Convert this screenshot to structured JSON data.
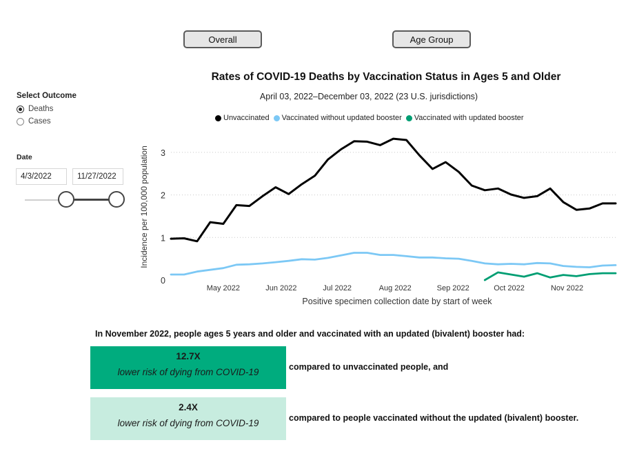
{
  "tabs": [
    {
      "label": "Overall"
    },
    {
      "label": "Age Group"
    }
  ],
  "filters": {
    "outcome_label": "Select Outcome",
    "outcome_options": [
      "Deaths",
      "Cases"
    ],
    "outcome_selected": "Deaths",
    "date_label": "Date",
    "date_start": "4/3/2022",
    "date_end": "11/27/2022",
    "slider_start_fraction": 0.0,
    "slider_end_fraction": 1.0
  },
  "chart_data": {
    "type": "line",
    "title": "Rates of COVID-19 Deaths by Vaccination Status in Ages 5 and Older",
    "subtitle": "April 03, 2022–December 03, 2022 (23 U.S. jurisdictions)",
    "xlabel": "Positive specimen collection date by start of week",
    "ylabel": "Incidence per 100,000 population",
    "ylim": [
      0,
      3.5
    ],
    "yticks": [
      0,
      1,
      2,
      3
    ],
    "grid": "horizontal dotted",
    "legend_position": "top",
    "x": [
      "2022-04-03",
      "2022-04-10",
      "2022-04-17",
      "2022-04-24",
      "2022-05-01",
      "2022-05-08",
      "2022-05-15",
      "2022-05-22",
      "2022-05-29",
      "2022-06-05",
      "2022-06-12",
      "2022-06-19",
      "2022-06-26",
      "2022-07-03",
      "2022-07-10",
      "2022-07-17",
      "2022-07-24",
      "2022-07-31",
      "2022-08-07",
      "2022-08-14",
      "2022-08-21",
      "2022-08-28",
      "2022-09-04",
      "2022-09-11",
      "2022-09-18",
      "2022-09-25",
      "2022-10-02",
      "2022-10-09",
      "2022-10-16",
      "2022-10-23",
      "2022-10-30",
      "2022-11-06",
      "2022-11-13",
      "2022-11-20",
      "2022-11-27"
    ],
    "xticks": [
      {
        "label": "May 2022",
        "date": "2022-05-01"
      },
      {
        "label": "Jun 2022",
        "date": "2022-06-01"
      },
      {
        "label": "Jul 2022",
        "date": "2022-07-01"
      },
      {
        "label": "Aug 2022",
        "date": "2022-08-01"
      },
      {
        "label": "Sep 2022",
        "date": "2022-09-01"
      },
      {
        "label": "Oct 2022",
        "date": "2022-10-01"
      },
      {
        "label": "Nov 2022",
        "date": "2022-11-01"
      }
    ],
    "series": [
      {
        "name": "Unvaccinated",
        "color": "#000000",
        "values": [
          0.97,
          0.98,
          0.91,
          1.36,
          1.32,
          1.76,
          1.74,
          1.97,
          2.18,
          2.02,
          2.25,
          2.45,
          2.83,
          3.07,
          3.26,
          3.25,
          3.17,
          3.32,
          3.29,
          2.93,
          2.61,
          2.77,
          2.54,
          2.22,
          2.11,
          2.15,
          2.01,
          1.93,
          1.97,
          2.15,
          1.83,
          1.65,
          1.68,
          1.8,
          1.8
        ]
      },
      {
        "name": "Vaccinated without updated booster",
        "color": "#7cc8f5",
        "values": [
          0.13,
          0.13,
          0.2,
          0.24,
          0.28,
          0.36,
          0.37,
          0.39,
          0.42,
          0.45,
          0.49,
          0.48,
          0.52,
          0.58,
          0.64,
          0.64,
          0.59,
          0.59,
          0.56,
          0.53,
          0.53,
          0.51,
          0.5,
          0.45,
          0.39,
          0.37,
          0.38,
          0.37,
          0.4,
          0.39,
          0.33,
          0.31,
          0.3,
          0.34,
          0.35
        ]
      },
      {
        "name": "Vaccinated with updated booster",
        "color": "#009e73",
        "values": [
          null,
          null,
          null,
          null,
          null,
          null,
          null,
          null,
          null,
          null,
          null,
          null,
          null,
          null,
          null,
          null,
          null,
          null,
          null,
          null,
          null,
          null,
          null,
          null,
          0.0,
          0.18,
          0.13,
          0.08,
          0.16,
          0.06,
          0.12,
          0.09,
          0.14,
          0.16,
          0.16
        ]
      }
    ]
  },
  "summary": {
    "heading": "In November 2022, people ages 5 years and older and vaccinated with an updated (bivalent) booster had:",
    "stats": [
      {
        "value": "12.7X",
        "description": "lower risk of dying from COVID-19",
        "comparison": "compared to unvaccinated people, and",
        "color": "#00ac7e"
      },
      {
        "value": "2.4X",
        "description": "lower risk of dying from COVID-19",
        "comparison": "compared to people vaccinated without the updated (bivalent) booster.",
        "color": "#c7ecdf"
      }
    ]
  }
}
